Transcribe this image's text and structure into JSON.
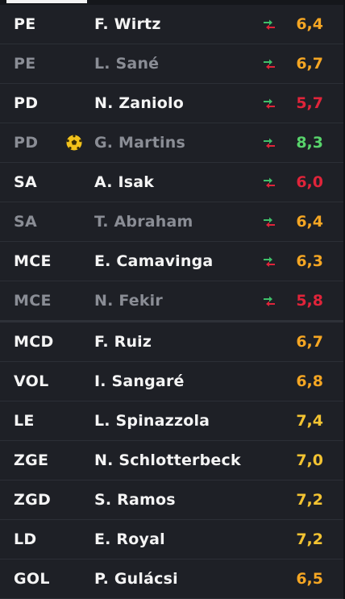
{
  "colors": {
    "orange": "#f5a623",
    "red": "#e0243a",
    "green": "#58d36b",
    "yellow": "#f3c332"
  },
  "players": [
    {
      "pos": "PE",
      "name": "F. Wirtz",
      "rating": "6,4",
      "rating_color": "orange",
      "swap": true,
      "dim": false,
      "ball": false
    },
    {
      "pos": "PE",
      "name": "L. Sané",
      "rating": "6,7",
      "rating_color": "orange",
      "swap": true,
      "dim": true,
      "ball": false
    },
    {
      "pos": "PD",
      "name": "N. Zaniolo",
      "rating": "5,7",
      "rating_color": "red",
      "swap": true,
      "dim": false,
      "ball": false
    },
    {
      "pos": "PD",
      "name": "G. Martins",
      "rating": "8,3",
      "rating_color": "green",
      "swap": true,
      "dim": true,
      "ball": true
    },
    {
      "pos": "SA",
      "name": "A. Isak",
      "rating": "6,0",
      "rating_color": "red",
      "swap": true,
      "dim": false,
      "ball": false
    },
    {
      "pos": "SA",
      "name": "T. Abraham",
      "rating": "6,4",
      "rating_color": "orange",
      "swap": true,
      "dim": true,
      "ball": false
    },
    {
      "pos": "MCE",
      "name": "E. Camavinga",
      "rating": "6,3",
      "rating_color": "orange",
      "swap": true,
      "dim": false,
      "ball": false
    },
    {
      "pos": "MCE",
      "name": "N. Fekir",
      "rating": "5,8",
      "rating_color": "red",
      "swap": true,
      "dim": true,
      "ball": false
    },
    {
      "pos": "MCD",
      "name": "F. Ruiz",
      "rating": "6,7",
      "rating_color": "orange",
      "swap": false,
      "dim": false,
      "ball": false
    },
    {
      "pos": "VOL",
      "name": "I. Sangaré",
      "rating": "6,8",
      "rating_color": "orange",
      "swap": false,
      "dim": false,
      "ball": false
    },
    {
      "pos": "LE",
      "name": "L. Spinazzola",
      "rating": "7,4",
      "rating_color": "yellow",
      "swap": false,
      "dim": false,
      "ball": false
    },
    {
      "pos": "ZGE",
      "name": "N. Schlotterbeck",
      "rating": "7,0",
      "rating_color": "yellow",
      "swap": false,
      "dim": false,
      "ball": false
    },
    {
      "pos": "ZGD",
      "name": "S. Ramos",
      "rating": "7,2",
      "rating_color": "yellow",
      "swap": false,
      "dim": false,
      "ball": false
    },
    {
      "pos": "LD",
      "name": "E. Royal",
      "rating": "7,2",
      "rating_color": "yellow",
      "swap": false,
      "dim": false,
      "ball": false
    },
    {
      "pos": "GOL",
      "name": "P. Gulácsi",
      "rating": "6,5",
      "rating_color": "orange",
      "swap": false,
      "dim": false,
      "ball": false
    }
  ]
}
